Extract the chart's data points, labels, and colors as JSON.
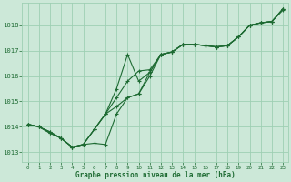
{
  "background_color": "#cce8d8",
  "grid_color": "#9ecfb3",
  "line_color": "#1e6b33",
  "xlabel": "Graphe pression niveau de la mer (hPa)",
  "xlim": [
    -0.5,
    23.5
  ],
  "ylim": [
    1012.6,
    1018.9
  ],
  "yticks": [
    1013,
    1014,
    1015,
    1016,
    1017,
    1018
  ],
  "xticks": [
    0,
    1,
    2,
    3,
    4,
    5,
    6,
    7,
    8,
    9,
    10,
    11,
    12,
    13,
    14,
    15,
    16,
    17,
    18,
    19,
    20,
    21,
    22,
    23
  ],
  "series": [
    [
      1014.1,
      1014.0,
      1013.8,
      1013.55,
      1013.2,
      1013.3,
      1013.9,
      1014.5,
      1015.15,
      1015.8,
      1016.2,
      1016.25,
      1016.85,
      1016.95,
      1017.25,
      1017.25,
      1017.2,
      1017.15,
      1017.2,
      1017.55,
      1018.0,
      1018.1,
      1018.15,
      1018.6
    ],
    [
      1014.1,
      1014.0,
      1013.8,
      1013.55,
      1013.2,
      1013.3,
      1013.9,
      1014.5,
      1015.5,
      1016.85,
      1015.8,
      1016.15,
      1016.85,
      1016.95,
      1017.25,
      1017.25,
      1017.2,
      1017.15,
      1017.2,
      1017.55,
      1018.0,
      1018.1,
      1018.15,
      1018.65
    ],
    [
      1014.1,
      1014.0,
      1013.75,
      1013.55,
      1013.2,
      1013.3,
      1013.35,
      1013.3,
      1014.5,
      1015.15,
      1015.3,
      1016.15,
      1016.85,
      1016.95,
      1017.25,
      1017.25,
      1017.2,
      1017.15,
      1017.2,
      1017.55,
      1018.0,
      1018.1,
      1018.15,
      1018.65
    ],
    [
      1014.1,
      1014.0,
      1013.75,
      1013.55,
      1013.2,
      1013.3,
      1013.9,
      1014.5,
      1014.8,
      1015.15,
      1015.3,
      1016.0,
      1016.85,
      1016.95,
      1017.25,
      1017.25,
      1017.2,
      1017.15,
      1017.2,
      1017.55,
      1018.0,
      1018.1,
      1018.15,
      1018.65
    ]
  ]
}
